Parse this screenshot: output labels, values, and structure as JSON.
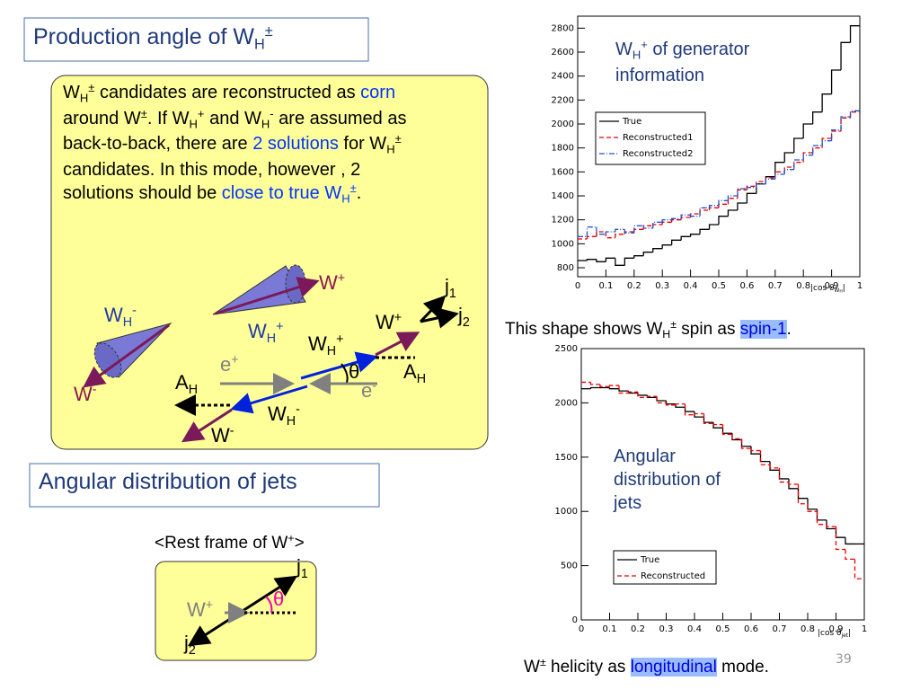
{
  "title": [
    {
      "text": "Production angle of W"
    },
    {
      "text": "H",
      "style": "sub"
    },
    {
      "text": "±",
      "style": "sup"
    }
  ],
  "box_text": [
    {
      "text": " W"
    },
    {
      "text": "H",
      "style": "sub"
    },
    {
      "text": "±",
      "style": "sup"
    },
    {
      "text": " candidates are reconstructed as "
    },
    {
      "text": "corn",
      "style": "blue"
    },
    {
      "text": " around W"
    },
    {
      "text": "±",
      "style": "sup"
    },
    {
      "text": ". If W"
    },
    {
      "text": "H",
      "style": "sub"
    },
    {
      "text": "+",
      "style": "sup"
    },
    {
      "text": " and W"
    },
    {
      "text": "H",
      "style": "sub"
    },
    {
      "text": "-",
      "style": "sup"
    },
    {
      "text": " are assumed as back-to-back, there are "
    },
    {
      "text": "2 solutions",
      "style": "blue"
    },
    {
      "text": " for W"
    },
    {
      "text": "H",
      "style": "sub"
    },
    {
      "text": "±",
      "style": "sup"
    },
    {
      "text": " candidates. In this mode, however , 2 solutions should be "
    },
    {
      "text": "close to true W",
      "style": "blue"
    },
    {
      "text": "H",
      "style": "sub blue"
    },
    {
      "text": "±",
      "style": "sup blue"
    },
    {
      "text": "."
    }
  ],
  "diagram_labels": [
    {
      "color": "#8b1a4a",
      "runs": [
        {
          "text": "W"
        },
        {
          "text": "+",
          "style": "sup"
        }
      ]
    },
    {
      "color": "#1f3aa0",
      "runs": [
        {
          "text": "W"
        },
        {
          "text": "H",
          "style": "sub"
        },
        {
          "text": "-",
          "style": "sup"
        }
      ]
    },
    {
      "color": "#1f3aa0",
      "runs": [
        {
          "text": "W"
        },
        {
          "text": "H",
          "style": "sub"
        },
        {
          "text": "+",
          "style": "sup"
        }
      ]
    },
    {
      "color": "#000000",
      "runs": [
        {
          "text": "W"
        },
        {
          "text": "+",
          "style": "sup"
        }
      ]
    },
    {
      "color": "#000000",
      "runs": [
        {
          "text": "j"
        },
        {
          "text": "1",
          "style": "sub"
        }
      ]
    },
    {
      "color": "#000000",
      "runs": [
        {
          "text": "j"
        },
        {
          "text": "2",
          "style": "sub"
        }
      ]
    },
    {
      "color": "#000000",
      "runs": [
        {
          "text": "W"
        },
        {
          "text": "H",
          "style": "sub"
        },
        {
          "text": "+",
          "style": "sup"
        }
      ]
    },
    {
      "color": "#808080",
      "runs": [
        {
          "text": "e"
        },
        {
          "text": "+",
          "style": "sup"
        }
      ]
    },
    {
      "color": "#000000",
      "runs": [
        {
          "text": "θ"
        }
      ]
    },
    {
      "color": "#000000",
      "runs": [
        {
          "text": "A"
        },
        {
          "text": "H",
          "style": "sub"
        }
      ]
    },
    {
      "color": "#000000",
      "runs": [
        {
          "text": "A"
        },
        {
          "text": "H",
          "style": "sub"
        }
      ]
    },
    {
      "color": "#808080",
      "runs": [
        {
          "text": "e"
        },
        {
          "text": "-",
          "style": "sup"
        }
      ]
    },
    {
      "color": "#8b1a4a",
      "runs": [
        {
          "text": "W"
        },
        {
          "text": "-",
          "style": "sup"
        }
      ]
    },
    {
      "color": "#000000",
      "runs": [
        {
          "text": "W"
        },
        {
          "text": "H",
          "style": "sub"
        },
        {
          "text": "-",
          "style": "sup"
        }
      ]
    },
    {
      "color": "#000000",
      "runs": [
        {
          "text": "W"
        },
        {
          "text": "-",
          "style": "sup"
        }
      ]
    }
  ],
  "section2_title": [
    {
      "text": "Angular distribution of jets"
    }
  ],
  "rest_frame_title": [
    {
      "text": "<Rest frame of W"
    },
    {
      "text": "+",
      "style": "sup"
    },
    {
      "text": ">"
    }
  ],
  "rest_frame_labels": [
    {
      "color": "#000000",
      "runs": [
        {
          "text": "j"
        },
        {
          "text": "1",
          "style": "sub"
        }
      ]
    },
    {
      "color": "#808080",
      "runs": [
        {
          "text": "W"
        },
        {
          "text": "+",
          "style": "sup"
        }
      ]
    },
    {
      "color": "#ee00aa",
      "runs": [
        {
          "text": "θ"
        }
      ]
    },
    {
      "color": "#000000",
      "runs": [
        {
          "text": "j"
        },
        {
          "text": "2",
          "style": "sub"
        }
      ]
    }
  ],
  "caption1": [
    {
      "text": "This shape shows W"
    },
    {
      "text": "H",
      "style": "sub"
    },
    {
      "text": "±",
      "style": "sup"
    },
    {
      "text": " spin as "
    },
    {
      "text": "spin-1",
      "style": "hl"
    },
    {
      "text": "."
    }
  ],
  "caption2": [
    {
      "text": "W"
    },
    {
      "text": "±",
      "style": "sup"
    },
    {
      "text": " helicity as "
    },
    {
      "text": "longitudinal",
      "style": "hl"
    },
    {
      "text": " mode."
    }
  ],
  "page_number": "39",
  "chart_data": [
    {
      "type": "histogram",
      "annotation": [
        {
          "text": "W"
        },
        {
          "text": "H",
          "style": "sub"
        },
        {
          "text": "+",
          "style": "sup"
        },
        {
          "text": " of generator information"
        }
      ],
      "xlabel": [
        {
          "text": "|cos θ"
        },
        {
          "text": "W",
          "style": "sub"
        },
        {
          "text": "H",
          "style": "subsub"
        },
        {
          "text": "|"
        }
      ],
      "bins": [
        0,
        0.0333,
        0.0667,
        0.1,
        0.1333,
        0.1667,
        0.2,
        0.2333,
        0.2667,
        0.3,
        0.3333,
        0.3667,
        0.4,
        0.4333,
        0.4667,
        0.5,
        0.5333,
        0.5667,
        0.6,
        0.6333,
        0.6667,
        0.7,
        0.7333,
        0.7667,
        0.8,
        0.8333,
        0.8667,
        0.9,
        0.9333,
        0.9667,
        1
      ],
      "series": [
        {
          "name": "True",
          "color": "#000000",
          "dash": "solid",
          "values": [
            860,
            870,
            850,
            880,
            820,
            880,
            900,
            930,
            960,
            990,
            1030,
            1060,
            1080,
            1120,
            1160,
            1230,
            1280,
            1340,
            1420,
            1500,
            1560,
            1680,
            1760,
            1880,
            2000,
            2100,
            2250,
            2450,
            2680,
            2820
          ]
        },
        {
          "name": "Reconstructed1",
          "color": "#ee0000",
          "dash": "dashed",
          "values": [
            1040,
            1060,
            1100,
            1050,
            1080,
            1100,
            1120,
            1150,
            1160,
            1180,
            1200,
            1220,
            1250,
            1280,
            1300,
            1330,
            1380,
            1450,
            1480,
            1520,
            1550,
            1600,
            1640,
            1680,
            1760,
            1800,
            1880,
            1940,
            2050,
            2100
          ]
        },
        {
          "name": "Reconstructed2",
          "color": "#2255cc",
          "dash": "dashdot",
          "values": [
            1060,
            1140,
            1080,
            1100,
            1120,
            1090,
            1150,
            1130,
            1180,
            1200,
            1210,
            1240,
            1230,
            1300,
            1320,
            1360,
            1400,
            1460,
            1470,
            1500,
            1540,
            1580,
            1620,
            1700,
            1740,
            1820,
            1860,
            1950,
            2060,
            2110
          ]
        }
      ],
      "xlim": [
        0,
        1
      ],
      "xticks": [
        0,
        0.1,
        0.2,
        0.3,
        0.4,
        0.5,
        0.6,
        0.7,
        0.8,
        0.9,
        1
      ],
      "ylim": [
        725,
        2900
      ],
      "yticks": [
        800,
        1000,
        1200,
        1400,
        1600,
        1800,
        2000,
        2200,
        2400,
        2600,
        2800
      ],
      "legend": "upper left"
    },
    {
      "type": "histogram",
      "annotation": [
        {
          "text": "Angular distribution of jets"
        }
      ],
      "xlabel": [
        {
          "text": "|cos θ"
        },
        {
          "text": "jet",
          "style": "sub"
        },
        {
          "text": "|"
        }
      ],
      "bins": [
        0,
        0.0333,
        0.0667,
        0.1,
        0.1333,
        0.1667,
        0.2,
        0.2333,
        0.2667,
        0.3,
        0.3333,
        0.3667,
        0.4,
        0.4333,
        0.4667,
        0.5,
        0.5333,
        0.5667,
        0.6,
        0.6333,
        0.6667,
        0.7,
        0.7333,
        0.7667,
        0.8,
        0.8333,
        0.8667,
        0.9,
        0.9333,
        0.9667,
        1
      ],
      "series": [
        {
          "name": "True",
          "color": "#000000",
          "dash": "solid",
          "values": [
            2130,
            2140,
            2140,
            2130,
            2110,
            2090,
            2070,
            2050,
            2020,
            1990,
            1960,
            1920,
            1870,
            1820,
            1770,
            1720,
            1660,
            1600,
            1530,
            1460,
            1380,
            1300,
            1210,
            1120,
            1020,
            920,
            840,
            760,
            700,
            700
          ]
        },
        {
          "name": "Reconstructed",
          "color": "#ee0000",
          "dash": "dashed",
          "values": [
            2190,
            2170,
            2150,
            2160,
            2090,
            2100,
            2050,
            2060,
            2000,
            1980,
            1990,
            1890,
            1900,
            1810,
            1800,
            1710,
            1670,
            1580,
            1560,
            1430,
            1400,
            1270,
            1250,
            1070,
            1000,
            880,
            860,
            650,
            560,
            380
          ]
        }
      ],
      "xlim": [
        0,
        1
      ],
      "xticks": [
        0,
        0.1,
        0.2,
        0.3,
        0.4,
        0.5,
        0.6,
        0.7,
        0.8,
        0.9,
        1
      ],
      "ylim": [
        0,
        2500
      ],
      "yticks": [
        0,
        500,
        1000,
        1500,
        2000,
        2500
      ],
      "legend": "lower left"
    }
  ]
}
